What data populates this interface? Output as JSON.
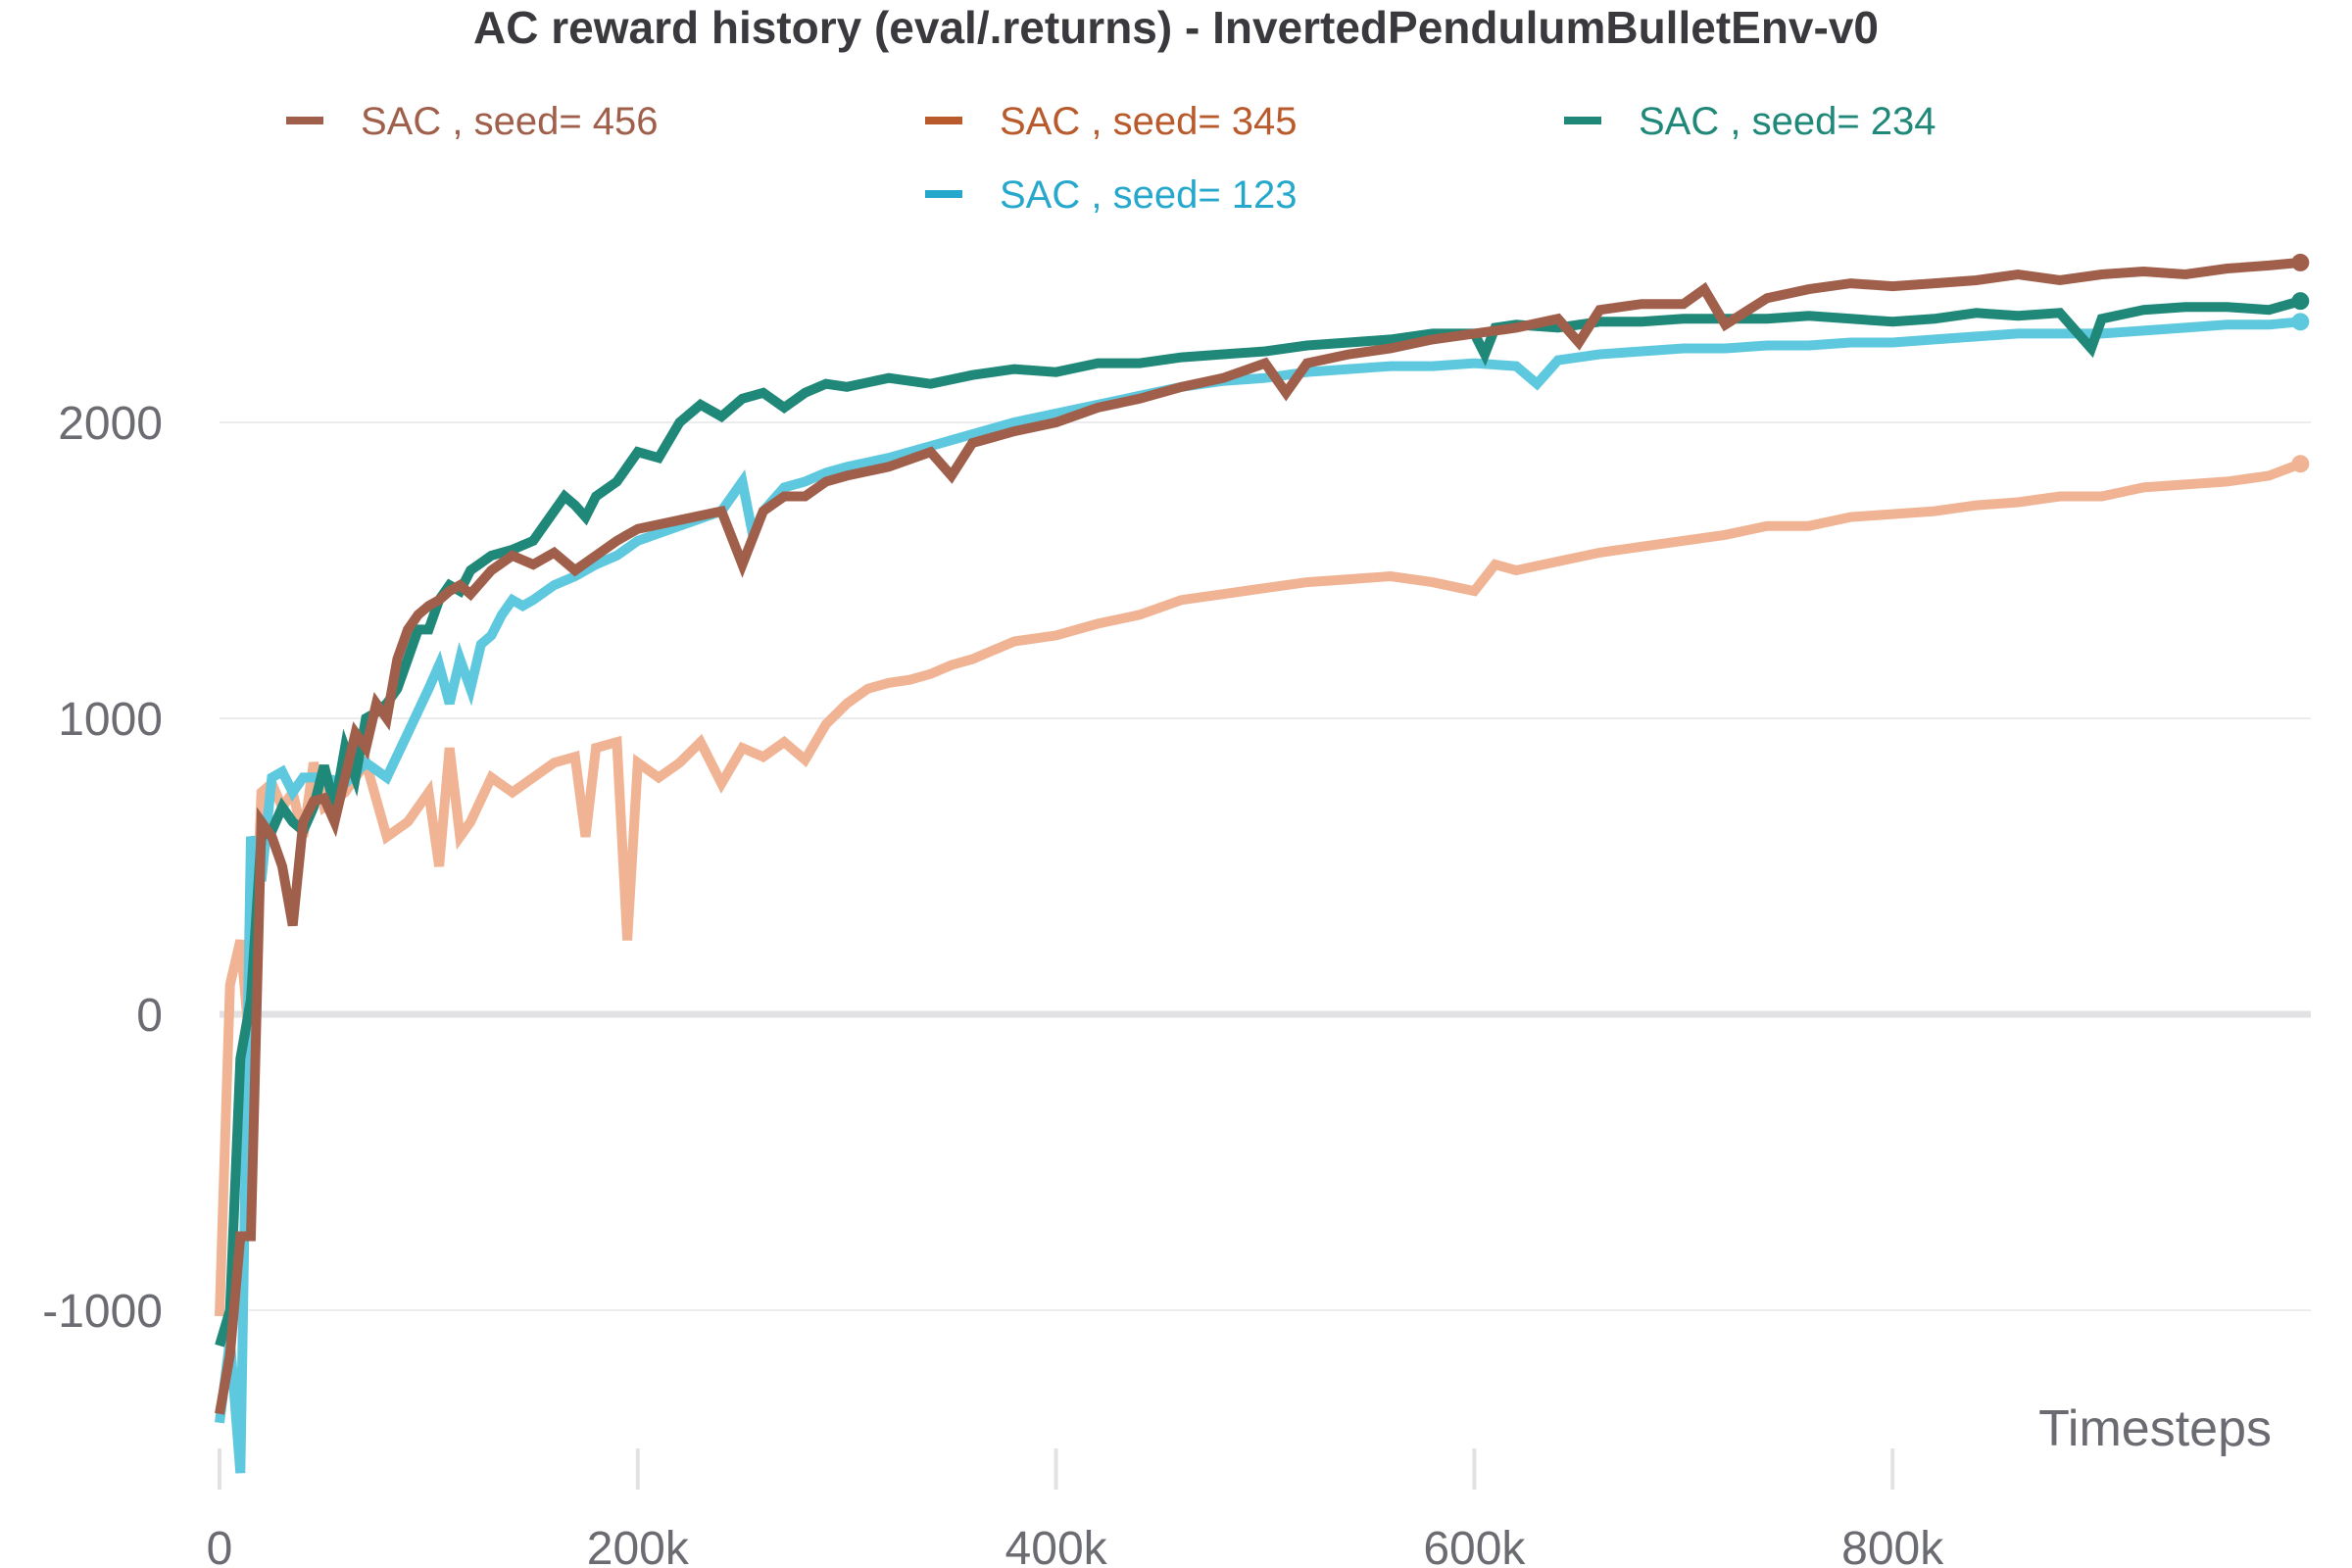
{
  "chart_data": {
    "type": "line",
    "title": "AC reward history (eval/.returns) - InvertedPendulumBulletEnv-v0",
    "xlabel": "Timesteps",
    "ylabel": "",
    "xlim": [
      0,
      1000000
    ],
    "ylim": [
      -1550,
      2650
    ],
    "x_ticks": [
      0,
      200000,
      400000,
      600000,
      800000
    ],
    "x_tick_labels": [
      "0",
      "200k",
      "400k",
      "600k",
      "800k"
    ],
    "y_ticks": [
      -1000,
      0,
      1000,
      2000
    ],
    "y_tick_labels": [
      "-1000",
      "0",
      "1000",
      "2000"
    ],
    "grid": "horizontal",
    "legend_position": "top",
    "series": [
      {
        "name": "SAC , seed= 456",
        "legend_color": "#a05f4a",
        "color": "#a05f4a",
        "x": [
          0,
          5000,
          10000,
          15000,
          20000,
          25000,
          30000,
          35000,
          40000,
          45000,
          50000,
          55000,
          60000,
          65000,
          70000,
          75000,
          80000,
          85000,
          90000,
          95000,
          100000,
          105000,
          110000,
          115000,
          120000,
          130000,
          140000,
          150000,
          160000,
          170000,
          180000,
          190000,
          200000,
          220000,
          240000,
          250000,
          260000,
          270000,
          280000,
          290000,
          300000,
          320000,
          340000,
          350000,
          360000,
          380000,
          400000,
          420000,
          440000,
          460000,
          480000,
          500000,
          510000,
          520000,
          540000,
          560000,
          580000,
          600000,
          620000,
          640000,
          650000,
          660000,
          680000,
          700000,
          710000,
          720000,
          740000,
          760000,
          780000,
          800000,
          820000,
          840000,
          860000,
          880000,
          900000,
          920000,
          940000,
          960000,
          980000,
          995000
        ],
        "y": [
          -1350,
          -1150,
          -750,
          -750,
          650,
          600,
          500,
          300,
          650,
          720,
          730,
          650,
          800,
          950,
          900,
          1050,
          1000,
          1200,
          1300,
          1350,
          1380,
          1400,
          1430,
          1450,
          1420,
          1500,
          1550,
          1520,
          1560,
          1500,
          1550,
          1600,
          1640,
          1670,
          1700,
          1520,
          1700,
          1750,
          1750,
          1800,
          1820,
          1850,
          1900,
          1820,
          1930,
          1970,
          2000,
          2050,
          2080,
          2120,
          2150,
          2200,
          2100,
          2200,
          2230,
          2250,
          2280,
          2300,
          2320,
          2350,
          2270,
          2380,
          2400,
          2400,
          2450,
          2330,
          2420,
          2450,
          2470,
          2460,
          2470,
          2480,
          2500,
          2480,
          2500,
          2510,
          2500,
          2520,
          2530,
          2540
        ]
      },
      {
        "name": "SAC , seed= 345",
        "legend_color": "#b85a2c",
        "color": "#f0b393",
        "x": [
          0,
          5000,
          10000,
          15000,
          20000,
          25000,
          30000,
          35000,
          40000,
          45000,
          50000,
          60000,
          70000,
          80000,
          90000,
          100000,
          105000,
          110000,
          115000,
          120000,
          130000,
          140000,
          150000,
          160000,
          170000,
          175000,
          180000,
          190000,
          195000,
          200000,
          210000,
          220000,
          230000,
          240000,
          250000,
          260000,
          270000,
          280000,
          290000,
          300000,
          310000,
          320000,
          330000,
          340000,
          350000,
          360000,
          380000,
          400000,
          420000,
          440000,
          460000,
          480000,
          500000,
          520000,
          540000,
          560000,
          580000,
          600000,
          610000,
          620000,
          640000,
          660000,
          680000,
          700000,
          720000,
          740000,
          760000,
          780000,
          800000,
          820000,
          840000,
          860000,
          880000,
          900000,
          920000,
          940000,
          960000,
          980000,
          995000
        ],
        "y": [
          -1020,
          100,
          250,
          -150,
          750,
          780,
          700,
          750,
          600,
          850,
          700,
          750,
          850,
          600,
          650,
          750,
          500,
          900,
          600,
          650,
          800,
          750,
          800,
          850,
          870,
          600,
          900,
          920,
          250,
          850,
          800,
          850,
          920,
          780,
          900,
          870,
          920,
          860,
          980,
          1050,
          1100,
          1120,
          1130,
          1150,
          1180,
          1200,
          1260,
          1280,
          1320,
          1350,
          1400,
          1420,
          1440,
          1460,
          1470,
          1480,
          1460,
          1430,
          1520,
          1500,
          1530,
          1560,
          1580,
          1600,
          1620,
          1650,
          1650,
          1680,
          1690,
          1700,
          1720,
          1730,
          1750,
          1750,
          1780,
          1790,
          1800,
          1820,
          1860
        ]
      },
      {
        "name": "SAC , seed= 234",
        "legend_color": "#1f8878",
        "color": "#1f8878",
        "x": [
          0,
          5000,
          10000,
          15000,
          20000,
          25000,
          30000,
          35000,
          40000,
          45000,
          50000,
          55000,
          60000,
          65000,
          70000,
          75000,
          80000,
          85000,
          90000,
          95000,
          100000,
          105000,
          110000,
          115000,
          120000,
          130000,
          140000,
          150000,
          160000,
          165000,
          170000,
          175000,
          180000,
          190000,
          200000,
          210000,
          220000,
          230000,
          240000,
          250000,
          260000,
          270000,
          280000,
          290000,
          300000,
          320000,
          340000,
          360000,
          380000,
          400000,
          420000,
          440000,
          460000,
          480000,
          500000,
          520000,
          540000,
          560000,
          580000,
          600000,
          605000,
          610000,
          620000,
          640000,
          660000,
          680000,
          700000,
          720000,
          740000,
          760000,
          780000,
          800000,
          820000,
          840000,
          860000,
          880000,
          895000,
          900000,
          920000,
          940000,
          960000,
          980000,
          995000
        ],
        "y": [
          -1120,
          -1000,
          -150,
          50,
          600,
          620,
          700,
          650,
          620,
          700,
          840,
          700,
          900,
          800,
          1000,
          1020,
          1050,
          1100,
          1200,
          1300,
          1300,
          1400,
          1450,
          1430,
          1500,
          1550,
          1570,
          1600,
          1700,
          1750,
          1720,
          1680,
          1750,
          1800,
          1900,
          1880,
          2000,
          2060,
          2020,
          2080,
          2100,
          2050,
          2100,
          2130,
          2120,
          2150,
          2130,
          2160,
          2180,
          2170,
          2200,
          2200,
          2220,
          2230,
          2240,
          2260,
          2270,
          2280,
          2300,
          2300,
          2230,
          2320,
          2330,
          2320,
          2340,
          2340,
          2350,
          2350,
          2350,
          2360,
          2350,
          2340,
          2350,
          2370,
          2360,
          2370,
          2250,
          2350,
          2380,
          2390,
          2390,
          2380,
          2410
        ]
      },
      {
        "name": "SAC , seed= 123",
        "legend_color": "#26a8cc",
        "color": "#5ec8de",
        "x": [
          0,
          5000,
          10000,
          15000,
          20000,
          25000,
          30000,
          35000,
          40000,
          50000,
          60000,
          70000,
          80000,
          90000,
          100000,
          105000,
          110000,
          115000,
          120000,
          125000,
          130000,
          135000,
          140000,
          145000,
          150000,
          160000,
          170000,
          175000,
          180000,
          190000,
          200000,
          220000,
          240000,
          250000,
          255000,
          260000,
          270000,
          280000,
          290000,
          300000,
          320000,
          340000,
          360000,
          380000,
          400000,
          420000,
          440000,
          460000,
          480000,
          500000,
          520000,
          540000,
          560000,
          580000,
          600000,
          620000,
          630000,
          640000,
          660000,
          680000,
          700000,
          720000,
          740000,
          760000,
          780000,
          800000,
          820000,
          840000,
          860000,
          880000,
          900000,
          920000,
          940000,
          960000,
          980000,
          995000
        ],
        "y": [
          -1380,
          -1100,
          -1550,
          600,
          450,
          800,
          820,
          750,
          800,
          800,
          780,
          850,
          800,
          950,
          1100,
          1180,
          1050,
          1200,
          1100,
          1250,
          1280,
          1350,
          1400,
          1380,
          1400,
          1450,
          1480,
          1500,
          1520,
          1550,
          1600,
          1650,
          1700,
          1800,
          1620,
          1700,
          1780,
          1800,
          1830,
          1850,
          1880,
          1920,
          1960,
          2000,
          2030,
          2060,
          2090,
          2120,
          2140,
          2150,
          2170,
          2180,
          2190,
          2190,
          2200,
          2190,
          2130,
          2210,
          2230,
          2240,
          2250,
          2250,
          2260,
          2260,
          2270,
          2270,
          2280,
          2290,
          2300,
          2300,
          2300,
          2310,
          2320,
          2330,
          2330,
          2340
        ]
      }
    ]
  }
}
